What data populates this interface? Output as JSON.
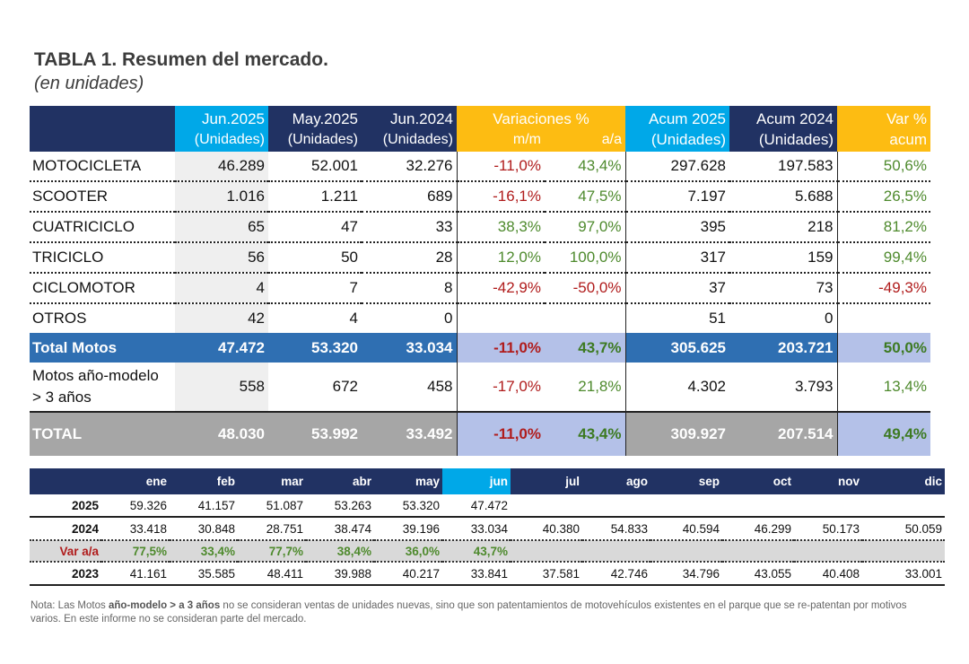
{
  "title": "TABLA 1. Resumen del mercado.",
  "subtitle": "(en unidades)",
  "summary_table": {
    "headers": {
      "jun2025": "Jun.2025",
      "may2025": "May.2025",
      "jun2024": "Jun.2024",
      "variaciones": "Variaciones %",
      "acum2025": "Acum 2025",
      "acum2024": "Acum 2024",
      "var_pct": "Var %",
      "unidades": "(Unidades)",
      "mm": "m/m",
      "aa": "a/a",
      "acum": "acum"
    },
    "rows": [
      {
        "label": "MOTOCICLETA",
        "jun25": "46.289",
        "may25": "52.001",
        "jun24": "32.276",
        "mm": "-11,0%",
        "aa": "43,4%",
        "acum25": "297.628",
        "acum24": "197.583",
        "var_acum": "50,6%"
      },
      {
        "label": "SCOOTER",
        "jun25": "1.016",
        "may25": "1.211",
        "jun24": "689",
        "mm": "-16,1%",
        "aa": "47,5%",
        "acum25": "7.197",
        "acum24": "5.688",
        "var_acum": "26,5%"
      },
      {
        "label": "CUATRICICLO",
        "jun25": "65",
        "may25": "47",
        "jun24": "33",
        "mm": "38,3%",
        "aa": "97,0%",
        "acum25": "395",
        "acum24": "218",
        "var_acum": "81,2%"
      },
      {
        "label": "TRICICLO",
        "jun25": "56",
        "may25": "50",
        "jun24": "28",
        "mm": "12,0%",
        "aa": "100,0%",
        "acum25": "317",
        "acum24": "159",
        "var_acum": "99,4%"
      },
      {
        "label": "CICLOMOTOR",
        "jun25": "4",
        "may25": "7",
        "jun24": "8",
        "mm": "-42,9%",
        "aa": "-50,0%",
        "acum25": "37",
        "acum24": "73",
        "var_acum": "-49,3%"
      },
      {
        "label": "OTROS",
        "jun25": "42",
        "may25": "4",
        "jun24": "0",
        "mm": "",
        "aa": "",
        "acum25": "51",
        "acum24": "0",
        "var_acum": ""
      }
    ],
    "total_motos": {
      "label": "Total Motos",
      "jun25": "47.472",
      "may25": "53.320",
      "jun24": "33.034",
      "mm": "-11,0%",
      "aa": "43,7%",
      "acum25": "305.625",
      "acum24": "203.721",
      "var_acum": "50,0%"
    },
    "motos_modelo": {
      "label": "Motos año-modelo > 3 años",
      "jun25": "558",
      "may25": "672",
      "jun24": "458",
      "mm": "-17,0%",
      "aa": "21,8%",
      "acum25": "4.302",
      "acum24": "3.793",
      "var_acum": "13,4%"
    },
    "total": {
      "label": "TOTAL",
      "jun25": "48.030",
      "may25": "53.992",
      "jun24": "33.492",
      "mm": "-11,0%",
      "aa": "43,4%",
      "acum25": "309.927",
      "acum24": "207.514",
      "var_acum": "49,4%"
    }
  },
  "monthly_table": {
    "months": [
      "ene",
      "feb",
      "mar",
      "abr",
      "may",
      "jun",
      "jul",
      "ago",
      "sep",
      "oct",
      "nov",
      "dic"
    ],
    "rows": {
      "y2025": {
        "year": "2025",
        "values": [
          "59.326",
          "41.157",
          "51.087",
          "53.263",
          "53.320",
          "47.472",
          "",
          "",
          "",
          "",
          "",
          ""
        ]
      },
      "y2024": {
        "year": "2024",
        "values": [
          "33.418",
          "30.848",
          "28.751",
          "38.474",
          "39.196",
          "33.034",
          "40.380",
          "54.833",
          "40.594",
          "46.299",
          "50.173",
          "50.059"
        ]
      },
      "var": {
        "year": "Var a/a",
        "values": [
          "77,5%",
          "33,4%",
          "77,7%",
          "38,4%",
          "36,0%",
          "43,7%",
          "",
          "",
          "",
          "",
          "",
          ""
        ]
      },
      "y2023": {
        "year": "2023",
        "values": [
          "41.161",
          "35.585",
          "48.411",
          "39.988",
          "40.217",
          "33.841",
          "37.581",
          "42.746",
          "34.796",
          "43.055",
          "40.408",
          "33.001"
        ]
      }
    }
  },
  "note": {
    "prefix": "Nota: Las Motos ",
    "bold": "año-modelo > a 3 años",
    "rest": " no se consideran ventas de unidades nuevas, sino que son patentamientos de motovehículos existentes en el parque que se re-patentan por motivos varios. En este informe no se consideran parte del mercado."
  },
  "colors": {
    "navy": "#213263",
    "cyan": "#00a8e8",
    "gold": "#fdbc12",
    "total_blue": "#2f6fb2",
    "lavender": "#b4c1e8",
    "grey": "#a6a6a6",
    "negative": "#b01c1c",
    "positive": "#4e8a2d"
  }
}
